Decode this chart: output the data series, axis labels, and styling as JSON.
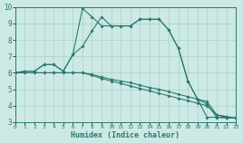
{
  "xlabel": "Humidex (Indice chaleur)",
  "xlim": [
    0,
    23
  ],
  "ylim": [
    3,
    10
  ],
  "xticks": [
    0,
    1,
    2,
    3,
    4,
    5,
    6,
    7,
    8,
    9,
    10,
    11,
    12,
    13,
    14,
    15,
    16,
    17,
    18,
    19,
    20,
    21,
    22,
    23
  ],
  "yticks": [
    3,
    4,
    5,
    6,
    7,
    8,
    9,
    10
  ],
  "bg_color": "#cde9e5",
  "grid_color": "#a8d0cb",
  "line_color": "#2a7a6e",
  "line1_x": [
    0,
    1,
    2,
    3,
    4,
    5,
    6,
    7,
    8,
    9,
    10,
    11,
    12,
    13,
    14,
    15,
    16,
    17,
    18,
    19,
    20,
    21,
    22,
    23
  ],
  "line1_y": [
    6.0,
    6.1,
    6.1,
    6.5,
    6.5,
    6.1,
    7.1,
    9.9,
    9.4,
    8.85,
    8.85,
    8.85,
    8.85,
    9.25,
    9.25,
    9.25,
    8.6,
    7.5,
    5.5,
    4.4,
    3.3,
    3.3,
    3.25,
    3.25
  ],
  "line2_x": [
    0,
    1,
    2,
    3,
    4,
    5,
    6,
    7,
    8,
    9,
    10,
    11,
    12,
    13,
    14,
    15,
    16,
    17,
    18,
    19,
    20,
    21,
    22,
    23
  ],
  "line2_y": [
    6.0,
    6.1,
    6.1,
    6.5,
    6.5,
    6.1,
    7.1,
    7.6,
    8.55,
    9.4,
    8.85,
    8.85,
    8.85,
    9.25,
    9.25,
    9.25,
    8.6,
    7.5,
    5.5,
    4.4,
    4.1,
    3.3,
    3.3,
    3.25
  ],
  "line3_x": [
    0,
    1,
    2,
    3,
    4,
    5,
    6,
    7,
    8,
    9,
    10,
    11,
    12,
    13,
    14,
    15,
    16,
    17,
    18,
    19,
    20,
    21,
    22,
    23
  ],
  "line3_y": [
    6.0,
    6.0,
    6.0,
    6.0,
    6.0,
    6.0,
    6.0,
    6.0,
    5.9,
    5.75,
    5.6,
    5.5,
    5.4,
    5.25,
    5.1,
    5.0,
    4.85,
    4.7,
    4.55,
    4.4,
    4.25,
    3.45,
    3.35,
    3.25
  ],
  "line4_x": [
    0,
    1,
    2,
    3,
    4,
    5,
    6,
    7,
    8,
    9,
    10,
    11,
    12,
    13,
    14,
    15,
    16,
    17,
    18,
    19,
    20,
    21,
    22,
    23
  ],
  "line4_y": [
    6.0,
    6.0,
    6.0,
    6.0,
    6.0,
    6.0,
    6.0,
    6.0,
    5.85,
    5.65,
    5.5,
    5.35,
    5.2,
    5.05,
    4.9,
    4.75,
    4.6,
    4.45,
    4.3,
    4.15,
    4.0,
    3.45,
    3.3,
    3.25
  ]
}
